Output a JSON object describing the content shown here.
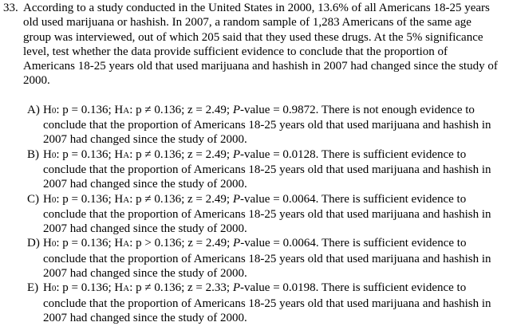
{
  "question": {
    "number": "33.",
    "text": "According to a study conducted in the United States in 2000, 13.6% of all Americans 18-25 years old used marijuana or hashish. In 2007, a random sample of 1,283 Americans of the same age group was interviewed, out of which 205 said that they used these drugs. At the 5% significance level, test whether the data provide sufficient evidence to conclude that the proportion of Americans 18-25 years old that used marijuana and hashish in 2007 had changed since the study of 2000."
  },
  "choices": [
    {
      "letter": "A)",
      "h0": "H",
      "h0_sub": "0",
      "h0_rel": ": p = 0.136; ",
      "ha": "H",
      "ha_sub": "A",
      "ha_rel": ": p ≠ 0.136; ",
      "z": "z = 2.49; ",
      "pval_label": "P",
      "pval": "-value = 0.9872.",
      "conclusion": " There is not enough evidence to conclude that the proportion of Americans 18-25 years old that used marijuana and hashish in 2007 had changed since the study of 2000."
    },
    {
      "letter": "B)",
      "h0": "H",
      "h0_sub": "0",
      "h0_rel": ": p = 0.136; ",
      "ha": "H",
      "ha_sub": "A",
      "ha_rel": ": p ≠ 0.136; ",
      "z": "z = 2.49; ",
      "pval_label": "P",
      "pval": "-value = 0.0128.",
      "conclusion": " There is sufficient evidence to conclude that the proportion of Americans 18-25 years old that used marijuana and hashish in 2007 had changed since the study of 2000."
    },
    {
      "letter": "C)",
      "h0": "H",
      "h0_sub": "0",
      "h0_rel": ": p = 0.136; ",
      "ha": "H",
      "ha_sub": "A",
      "ha_rel": ": p ≠ 0.136; ",
      "z": "z = 2.49; ",
      "pval_label": "P",
      "pval": "-value = 0.0064.",
      "conclusion": "  There is sufficient evidence to conclude that the proportion of Americans 18-25 years old that used marijuana and hashish in 2007 had changed since the study of 2000."
    },
    {
      "letter": "D)",
      "h0": "H",
      "h0_sub": "0",
      "h0_rel": ": p = 0.136; ",
      "ha": "H",
      "ha_sub": "A",
      "ha_rel": ": p > 0.136; ",
      "z": "z = 2.49; ",
      "pval_label": "P",
      "pval": "-value = 0.0064.",
      "conclusion": "  There is sufficient evidence to conclude that the proportion of Americans 18-25 years old that used marijuana and hashish in 2007 had changed since the study of 2000."
    },
    {
      "letter": "E)",
      "h0": "H",
      "h0_sub": "0",
      "h0_rel": ": p = 0.136; ",
      "ha": "H",
      "ha_sub": "A",
      "ha_rel": ": p ≠ 0.136; ",
      "z": "z = 2.33; ",
      "pval_label": "P",
      "pval": "-value = 0.0198.",
      "conclusion": "  There is sufficient evidence to conclude that the proportion of Americans 18-25 years old that used marijuana and hashish in 2007 had changed since the study of 2000."
    }
  ]
}
